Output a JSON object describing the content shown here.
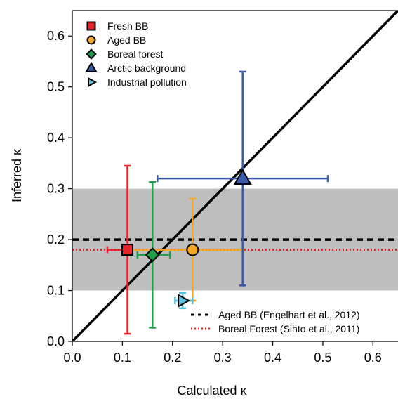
{
  "chart_data": {
    "type": "scatter",
    "xlabel": "Calculated κ",
    "ylabel": "Inferred κ",
    "xlim": [
      0,
      0.65
    ],
    "ylim": [
      0,
      0.65
    ],
    "x_ticks": [
      {
        "value": 0.0,
        "label": "0.0"
      },
      {
        "value": 0.1,
        "label": "0.1"
      },
      {
        "value": 0.2,
        "label": "0.2"
      },
      {
        "value": 0.3,
        "label": "0.3"
      },
      {
        "value": 0.4,
        "label": "0.4"
      },
      {
        "value": 0.5,
        "label": "0.5"
      },
      {
        "value": 0.6,
        "label": "0.6"
      }
    ],
    "y_ticks": [
      {
        "value": 0.0,
        "label": "0.0"
      },
      {
        "value": 0.1,
        "label": "0.1"
      },
      {
        "value": 0.2,
        "label": "0.2"
      },
      {
        "value": 0.3,
        "label": "0.3"
      },
      {
        "value": 0.4,
        "label": "0.4"
      },
      {
        "value": 0.5,
        "label": "0.5"
      },
      {
        "value": 0.6,
        "label": "0.6"
      }
    ],
    "grid": false,
    "legend_position": "top-left",
    "shaded_band": {
      "y_from": 0.1,
      "y_to": 0.3,
      "color": "#bebebe"
    },
    "one_to_one_line": true,
    "series": [
      {
        "name": "Fresh BB",
        "marker": "square",
        "color": "#e8232a",
        "x": 0.11,
        "y": 0.18,
        "x_err": [
          0.07,
          0.11
        ],
        "y_err": [
          0.015,
          0.345
        ]
      },
      {
        "name": "Aged BB",
        "marker": "circle",
        "color": "#f5a623",
        "x": 0.24,
        "y": 0.18,
        "x_err": [
          0.12,
          0.34
        ],
        "y_err": [
          0.08,
          0.28
        ]
      },
      {
        "name": "Boreal forest",
        "marker": "diamond",
        "color": "#1e9e46",
        "x": 0.16,
        "y": 0.17,
        "x_err": [
          0.13,
          0.195
        ],
        "y_err": [
          0.027,
          0.313
        ]
      },
      {
        "name": "Arctic background",
        "marker": "triangle-up",
        "color": "#3a5aa8",
        "x": 0.34,
        "y": 0.32,
        "x_err": [
          0.17,
          0.51
        ],
        "y_err": [
          0.11,
          0.53
        ]
      },
      {
        "name": "Industrial pollution",
        "marker": "triangle-right",
        "color": "#5bc0de",
        "x": 0.22,
        "y": 0.08,
        "x_err": [
          0.205,
          0.24
        ],
        "y_err": [
          0.065,
          0.095
        ]
      }
    ],
    "reference_lines": [
      {
        "name": "Aged BB (Engelhart et al., 2012)",
        "y": 0.2,
        "color": "#000000",
        "style": "dashed"
      },
      {
        "name": "Boreal Forest (Sihto et al., 2011)",
        "y": 0.18,
        "color": "#e8232a",
        "style": "dotted"
      }
    ]
  }
}
